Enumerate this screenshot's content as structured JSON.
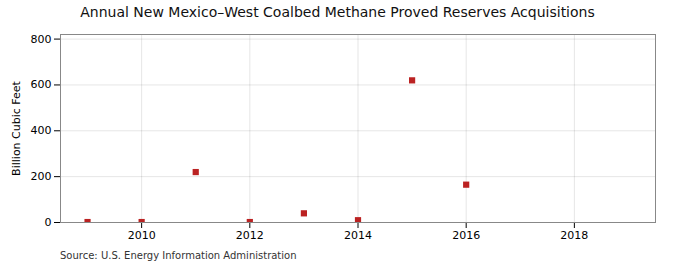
{
  "chart_data": {
    "type": "scatter",
    "title": "Annual New Mexico–West Coalbed Methane Proved Reserves Acquisitions",
    "ylabel": "Billion Cubic Feet",
    "annotation": "Source: U.S. Energy Information Administration",
    "x": [
      2009,
      2010,
      2011,
      2012,
      2013,
      2014,
      2015,
      2016
    ],
    "values": [
      2,
      2,
      220,
      2,
      40,
      10,
      620,
      165
    ],
    "color": "#bb2222",
    "marker": "square",
    "xlim": [
      2008.5,
      2019.5
    ],
    "ylim": [
      0,
      820
    ],
    "xticks": [
      2010,
      2012,
      2014,
      2016,
      2018
    ],
    "yticks": [
      0,
      200,
      400,
      600,
      800
    ],
    "grid": true
  }
}
